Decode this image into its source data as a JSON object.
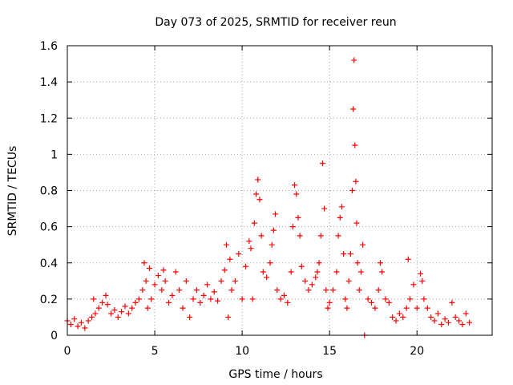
{
  "chart_data": {
    "type": "scatter",
    "title": "Day 073 of 2025, SRMTID for receiver reun",
    "xlabel": "GPS time / hours",
    "ylabel": "SRMTID / TECUs",
    "xlim": [
      0,
      24.3
    ],
    "ylim": [
      0,
      1.6
    ],
    "xticks": [
      0,
      5,
      10,
      15,
      20
    ],
    "xtick_labels": [
      "0",
      "5",
      "10",
      "15",
      "20"
    ],
    "yticks": [
      0,
      0.2,
      0.4,
      0.6,
      0.8,
      1.0,
      1.2,
      1.4,
      1.6
    ],
    "ytick_labels": [
      "0",
      "0.2",
      "0.4",
      "0.6",
      "0.8",
      "1",
      "1.2",
      "1.4",
      "1.6"
    ],
    "grid": true,
    "marker": "plus",
    "color": "#ff0000",
    "series": [
      {
        "name": "SRMTID",
        "x": [
          0.0,
          0.2,
          0.4,
          0.6,
          0.8,
          1.0,
          1.2,
          1.4,
          1.5,
          1.6,
          1.8,
          2.0,
          2.2,
          2.3,
          2.5,
          2.7,
          2.9,
          3.1,
          3.3,
          3.5,
          3.7,
          3.9,
          4.1,
          4.3,
          4.4,
          4.5,
          4.6,
          4.7,
          4.8,
          5.0,
          5.2,
          5.4,
          5.5,
          5.6,
          5.8,
          6.0,
          6.2,
          6.4,
          6.6,
          6.8,
          7.0,
          7.2,
          7.4,
          7.6,
          7.8,
          8.0,
          8.2,
          8.4,
          8.6,
          8.8,
          9.0,
          9.1,
          9.2,
          9.3,
          9.4,
          9.6,
          9.8,
          10.0,
          10.2,
          10.4,
          10.5,
          10.6,
          10.7,
          10.8,
          10.9,
          11.0,
          11.1,
          11.2,
          11.4,
          11.6,
          11.7,
          11.8,
          11.9,
          12.0,
          12.2,
          12.4,
          12.6,
          12.8,
          12.9,
          13.0,
          13.1,
          13.2,
          13.3,
          13.4,
          13.6,
          13.8,
          14.0,
          14.2,
          14.3,
          14.4,
          14.5,
          14.6,
          14.7,
          14.8,
          14.9,
          15.0,
          15.2,
          15.4,
          15.5,
          15.6,
          15.7,
          15.8,
          15.9,
          16.0,
          16.1,
          16.2,
          16.3,
          16.35,
          16.4,
          16.45,
          16.5,
          16.55,
          16.6,
          16.7,
          16.8,
          16.9,
          17.0,
          17.2,
          17.4,
          17.6,
          17.8,
          17.9,
          18.0,
          18.2,
          18.4,
          18.6,
          18.8,
          19.0,
          19.2,
          19.4,
          19.5,
          19.6,
          19.8,
          20.0,
          20.2,
          20.3,
          20.4,
          20.6,
          20.8,
          21.0,
          21.2,
          21.4,
          21.6,
          21.8,
          22.0,
          22.2,
          22.4,
          22.6,
          22.8,
          23.0
        ],
        "y": [
          0.08,
          0.06,
          0.09,
          0.05,
          0.07,
          0.04,
          0.08,
          0.1,
          0.2,
          0.12,
          0.15,
          0.18,
          0.22,
          0.17,
          0.12,
          0.14,
          0.1,
          0.13,
          0.16,
          0.12,
          0.15,
          0.18,
          0.2,
          0.25,
          0.4,
          0.3,
          0.15,
          0.37,
          0.2,
          0.28,
          0.33,
          0.25,
          0.36,
          0.3,
          0.18,
          0.22,
          0.35,
          0.25,
          0.15,
          0.3,
          0.1,
          0.2,
          0.25,
          0.18,
          0.22,
          0.28,
          0.2,
          0.24,
          0.19,
          0.3,
          0.36,
          0.5,
          0.1,
          0.42,
          0.25,
          0.3,
          0.45,
          0.2,
          0.38,
          0.52,
          0.48,
          0.2,
          0.62,
          0.78,
          0.86,
          0.75,
          0.55,
          0.35,
          0.32,
          0.4,
          0.5,
          0.58,
          0.67,
          0.25,
          0.2,
          0.22,
          0.18,
          0.35,
          0.6,
          0.83,
          0.78,
          0.65,
          0.55,
          0.38,
          0.3,
          0.25,
          0.28,
          0.32,
          0.35,
          0.4,
          0.55,
          0.95,
          0.7,
          0.25,
          0.15,
          0.18,
          0.25,
          0.35,
          0.55,
          0.65,
          0.71,
          0.45,
          0.2,
          0.15,
          0.3,
          0.45,
          0.8,
          1.25,
          1.52,
          1.05,
          0.85,
          0.62,
          0.4,
          0.25,
          0.35,
          0.5,
          0.0,
          0.2,
          0.18,
          0.15,
          0.25,
          0.4,
          0.35,
          0.2,
          0.18,
          0.1,
          0.08,
          0.12,
          0.1,
          0.15,
          0.42,
          0.2,
          0.28,
          0.15,
          0.34,
          0.3,
          0.2,
          0.15,
          0.1,
          0.08,
          0.12,
          0.06,
          0.09,
          0.07,
          0.18,
          0.1,
          0.08,
          0.06,
          0.12,
          0.07
        ]
      }
    ]
  }
}
